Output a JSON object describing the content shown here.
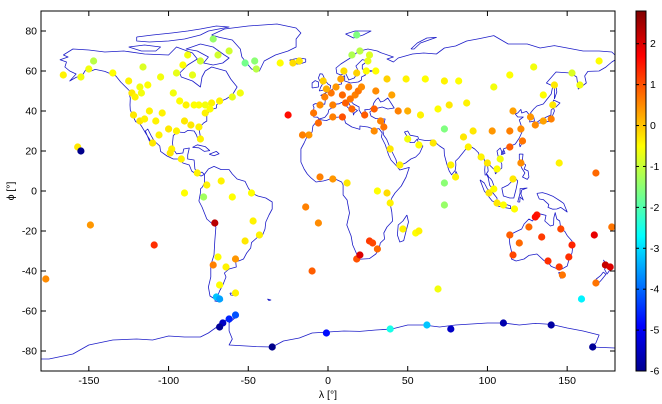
{
  "chart_data": {
    "type": "scatter",
    "xlabel": "λ [°]",
    "ylabel": "ϕ [°]",
    "xlim": [
      -180,
      180
    ],
    "ylim": [
      -90,
      90
    ],
    "xticks": [
      -150,
      -100,
      -50,
      0,
      50,
      100,
      150
    ],
    "yticks": [
      -80,
      -60,
      -40,
      -20,
      0,
      20,
      40,
      60,
      80
    ],
    "grid": false,
    "background": "world coastline map",
    "colorbar": {
      "position": "right",
      "range": [
        -6,
        2.8
      ],
      "ticks": [
        2,
        1,
        0,
        -1,
        -2,
        -3,
        -4,
        -5,
        -6
      ],
      "colormap": "jet"
    },
    "points": [
      {
        "lon": -177,
        "lat": -44,
        "v": 0.5
      },
      {
        "lon": -166,
        "lat": 58,
        "v": -0.4
      },
      {
        "lon": -155,
        "lat": 57,
        "v": -0.6
      },
      {
        "lon": -150,
        "lat": 61,
        "v": -0.6
      },
      {
        "lon": -147,
        "lat": 65,
        "v": -1.1
      },
      {
        "lon": -135,
        "lat": 59,
        "v": -0.5
      },
      {
        "lon": -125,
        "lat": 55,
        "v": -0.4
      },
      {
        "lon": -123,
        "lat": 49,
        "v": -0.3
      },
      {
        "lon": -121,
        "lat": 47,
        "v": -0.4
      },
      {
        "lon": -118,
        "lat": 52,
        "v": -0.6
      },
      {
        "lon": -117,
        "lat": 49,
        "v": -0.6
      },
      {
        "lon": -116,
        "lat": 62,
        "v": -0.8
      },
      {
        "lon": -113,
        "lat": 53,
        "v": -0.5
      },
      {
        "lon": -105,
        "lat": 57,
        "v": -0.6
      },
      {
        "lon": -95,
        "lat": 59,
        "v": -0.7
      },
      {
        "lon": -91,
        "lat": 63,
        "v": -0.5
      },
      {
        "lon": -88,
        "lat": 68,
        "v": -0.6
      },
      {
        "lon": -85,
        "lat": 58,
        "v": -0.7
      },
      {
        "lon": -80,
        "lat": 65,
        "v": -0.9
      },
      {
        "lon": -72,
        "lat": 76,
        "v": -1.4
      },
      {
        "lon": -69,
        "lat": 68,
        "v": -0.9
      },
      {
        "lon": -62,
        "lat": 70,
        "v": -0.9
      },
      {
        "lon": -52,
        "lat": 64,
        "v": -1.7
      },
      {
        "lon": -46,
        "lat": 65,
        "v": -1.5
      },
      {
        "lon": -45,
        "lat": 61,
        "v": -1.1
      },
      {
        "lon": -30,
        "lat": 64,
        "v": -0.5
      },
      {
        "lon": -22,
        "lat": 64,
        "v": -0.2
      },
      {
        "lon": -18,
        "lat": 65,
        "v": -0.3
      },
      {
        "lon": -55,
        "lat": 49,
        "v": -0.6
      },
      {
        "lon": -60,
        "lat": 47,
        "v": -0.7
      },
      {
        "lon": -68,
        "lat": 45,
        "v": -0.4
      },
      {
        "lon": -73,
        "lat": 44,
        "v": -0.4
      },
      {
        "lon": -77,
        "lat": 43,
        "v": -0.6
      },
      {
        "lon": -81,
        "lat": 43,
        "v": -0.5
      },
      {
        "lon": -84,
        "lat": 43,
        "v": -0.5
      },
      {
        "lon": -89,
        "lat": 43,
        "v": -0.4
      },
      {
        "lon": -93,
        "lat": 45,
        "v": -0.5
      },
      {
        "lon": -97,
        "lat": 49,
        "v": -0.6
      },
      {
        "lon": -104,
        "lat": 39,
        "v": -0.4
      },
      {
        "lon": -112,
        "lat": 40,
        "v": -0.4
      },
      {
        "lon": -118,
        "lat": 35,
        "v": -0.3
      },
      {
        "lon": -122,
        "lat": 38,
        "v": -0.3
      },
      {
        "lon": -115,
        "lat": 36,
        "v": -0.4
      },
      {
        "lon": -108,
        "lat": 35,
        "v": -0.4
      },
      {
        "lon": -100,
        "lat": 31,
        "v": -0.3
      },
      {
        "lon": -95,
        "lat": 30,
        "v": -0.4
      },
      {
        "lon": -90,
        "lat": 35,
        "v": -0.3
      },
      {
        "lon": -86,
        "lat": 33,
        "v": -0.3
      },
      {
        "lon": -81,
        "lat": 32,
        "v": -0.4
      },
      {
        "lon": -77,
        "lat": 39,
        "v": -0.4
      },
      {
        "lon": -74,
        "lat": 41,
        "v": -0.5
      },
      {
        "lon": -80,
        "lat": 26,
        "v": -0.4
      },
      {
        "lon": -98,
        "lat": 21,
        "v": -0.4
      },
      {
        "lon": -99,
        "lat": 19,
        "v": -0.3
      },
      {
        "lon": -106,
        "lat": 28,
        "v": -0.4
      },
      {
        "lon": -110,
        "lat": 24,
        "v": -0.3
      },
      {
        "lon": -92,
        "lat": 16,
        "v": -0.4
      },
      {
        "lon": -82,
        "lat": 9,
        "v": -0.4
      },
      {
        "lon": -76,
        "lat": 3,
        "v": -0.4
      },
      {
        "lon": -67,
        "lat": 5,
        "v": -0.4
      },
      {
        "lon": -60,
        "lat": -3,
        "v": -0.5
      },
      {
        "lon": -48,
        "lat": -1,
        "v": -0.5
      },
      {
        "lon": -47,
        "lat": -15,
        "v": -0.4
      },
      {
        "lon": -43,
        "lat": -22,
        "v": -0.4
      },
      {
        "lon": -52,
        "lat": -25,
        "v": -0.3
      },
      {
        "lon": -58,
        "lat": -34,
        "v": 0.4
      },
      {
        "lon": -69,
        "lat": -33,
        "v": -0.5
      },
      {
        "lon": -71,
        "lat": -16,
        "v": 2.3
      },
      {
        "lon": -78,
        "lat": -3,
        "v": -1.3
      },
      {
        "lon": -90,
        "lat": -1,
        "v": -0.5
      },
      {
        "lon": -109,
        "lat": -27,
        "v": 1.3
      },
      {
        "lon": -149,
        "lat": -17,
        "v": 0.4
      },
      {
        "lon": -157,
        "lat": 22,
        "v": -0.3
      },
      {
        "lon": -155,
        "lat": 20,
        "v": -5.9
      },
      {
        "lon": -64,
        "lat": -38,
        "v": -0.4
      },
      {
        "lon": -68,
        "lat": -47,
        "v": -0.5
      },
      {
        "lon": -70,
        "lat": -53,
        "v": -3.2
      },
      {
        "lon": -68,
        "lat": -54,
        "v": -3.5
      },
      {
        "lon": -58,
        "lat": -51,
        "v": -0.4
      },
      {
        "lon": -72,
        "lat": -37,
        "v": 0.6
      },
      {
        "lon": -12,
        "lat": 28,
        "v": 0.4
      },
      {
        "lon": -16,
        "lat": 28,
        "v": 0.6
      },
      {
        "lon": -25,
        "lat": 38,
        "v": 1.6
      },
      {
        "lon": -9,
        "lat": 39,
        "v": 0.7
      },
      {
        "lon": -5,
        "lat": 43,
        "v": 0.5
      },
      {
        "lon": -2,
        "lat": 47,
        "v": 0.6
      },
      {
        "lon": 2,
        "lat": 49,
        "v": 0.7
      },
      {
        "lon": 3,
        "lat": 43,
        "v": 0.6
      },
      {
        "lon": 5,
        "lat": 52,
        "v": 0.4
      },
      {
        "lon": 9,
        "lat": 48,
        "v": 0.8
      },
      {
        "lon": 11,
        "lat": 44,
        "v": 0.9
      },
      {
        "lon": 13,
        "lat": 52,
        "v": 0.6
      },
      {
        "lon": 15,
        "lat": 41,
        "v": 0.8
      },
      {
        "lon": 17,
        "lat": 48,
        "v": 0.6
      },
      {
        "lon": 19,
        "lat": 50,
        "v": 0.7
      },
      {
        "lon": 21,
        "lat": 52,
        "v": 0.5
      },
      {
        "lon": 23,
        "lat": 38,
        "v": 0.9
      },
      {
        "lon": 14,
        "lat": 46,
        "v": 0.7
      },
      {
        "lon": -3,
        "lat": 55,
        "v": -0.1
      },
      {
        "lon": -1,
        "lat": 51,
        "v": 0.2
      },
      {
        "lon": 8,
        "lat": 56,
        "v": 0.3
      },
      {
        "lon": 10,
        "lat": 60,
        "v": -0.2
      },
      {
        "lon": 18,
        "lat": 59,
        "v": -0.1
      },
      {
        "lon": 24,
        "lat": 60,
        "v": -0.5
      },
      {
        "lon": 15,
        "lat": 68,
        "v": -1.2
      },
      {
        "lon": 20,
        "lat": 70,
        "v": -1.1
      },
      {
        "lon": 26,
        "lat": 68,
        "v": -0.8
      },
      {
        "lon": 25,
        "lat": 65,
        "v": -0.7
      },
      {
        "lon": 18,
        "lat": 78,
        "v": -1.6
      },
      {
        "lon": 30,
        "lat": 60,
        "v": -0.5
      },
      {
        "lon": 37,
        "lat": 56,
        "v": -0.1
      },
      {
        "lon": 30,
        "lat": 50,
        "v": 0.5
      },
      {
        "lon": 40,
        "lat": 48,
        "v": 0.3
      },
      {
        "lon": 29,
        "lat": 41,
        "v": 0.9
      },
      {
        "lon": 33,
        "lat": 35,
        "v": 0.6
      },
      {
        "lon": 35,
        "lat": 32,
        "v": 0.7
      },
      {
        "lon": 44,
        "lat": 40,
        "v": 0.6
      },
      {
        "lon": 50,
        "lat": 40,
        "v": 0.2
      },
      {
        "lon": 9,
        "lat": 37,
        "v": 1.0
      },
      {
        "lon": 3,
        "lat": 37,
        "v": 0.6
      },
      {
        "lon": -6,
        "lat": 34,
        "v": 0.8
      },
      {
        "lon": 29,
        "lat": 30,
        "v": 0.5
      },
      {
        "lon": 39,
        "lat": 21,
        "v": -0.3
      },
      {
        "lon": 50,
        "lat": 26,
        "v": -0.6
      },
      {
        "lon": 57,
        "lat": 23,
        "v": -0.5
      },
      {
        "lon": 45,
        "lat": 13,
        "v": -0.4
      },
      {
        "lon": -5,
        "lat": 7,
        "v": 0.6
      },
      {
        "lon": 3,
        "lat": 6,
        "v": 0.4
      },
      {
        "lon": 12,
        "lat": 4,
        "v": -0.3
      },
      {
        "lon": 31,
        "lat": 0,
        "v": -0.5
      },
      {
        "lon": 37,
        "lat": -1,
        "v": -0.2
      },
      {
        "lon": 39,
        "lat": -6,
        "v": -0.4
      },
      {
        "lon": 26,
        "lat": -25,
        "v": 1.2
      },
      {
        "lon": 28,
        "lat": -26,
        "v": 1.1
      },
      {
        "lon": 18,
        "lat": -34,
        "v": 1.0
      },
      {
        "lon": 20,
        "lat": -32,
        "v": 2.0
      },
      {
        "lon": 31,
        "lat": -29,
        "v": 0.8
      },
      {
        "lon": 47,
        "lat": -19,
        "v": -0.4
      },
      {
        "lon": 55,
        "lat": -21,
        "v": -0.5
      },
      {
        "lon": 57,
        "lat": -20,
        "v": -0.4
      },
      {
        "lon": 73,
        "lat": -7,
        "v": -1.4
      },
      {
        "lon": 73,
        "lat": 4,
        "v": -1.5
      },
      {
        "lon": 77,
        "lat": 13,
        "v": -0.4
      },
      {
        "lon": 80,
        "lat": 7,
        "v": -0.4
      },
      {
        "lon": 69,
        "lat": -49,
        "v": -0.6
      },
      {
        "lon": 39,
        "lat": -69,
        "v": -2.5
      },
      {
        "lon": 62,
        "lat": -67,
        "v": -3.2
      },
      {
        "lon": 77,
        "lat": -69,
        "v": -5.4
      },
      {
        "lon": 110,
        "lat": -66,
        "v": -5.6
      },
      {
        "lon": 140,
        "lat": -67,
        "v": -5.7
      },
      {
        "lon": 166,
        "lat": -78,
        "v": -5.8
      },
      {
        "lon": -1,
        "lat": -71,
        "v": -4.8
      },
      {
        "lon": -35,
        "lat": -78,
        "v": -5.9
      },
      {
        "lon": -58,
        "lat": -62,
        "v": -4.2
      },
      {
        "lon": -62,
        "lat": -64,
        "v": -4.6
      },
      {
        "lon": -66,
        "lat": -66,
        "v": -5.4
      },
      {
        "lon": -68,
        "lat": -68,
        "v": -5.8
      },
      {
        "lon": 159,
        "lat": -54,
        "v": -2.8
      },
      {
        "lon": 147,
        "lat": -42,
        "v": 0.7
      },
      {
        "lon": 145,
        "lat": -38,
        "v": 1.2
      },
      {
        "lon": 151,
        "lat": -33,
        "v": 1.3
      },
      {
        "lon": 153,
        "lat": -27,
        "v": 1.4
      },
      {
        "lon": 146,
        "lat": -19,
        "v": 1.1
      },
      {
        "lon": 131,
        "lat": -12,
        "v": 1.5
      },
      {
        "lon": 134,
        "lat": -23,
        "v": 1.2
      },
      {
        "lon": 138,
        "lat": -35,
        "v": 1.3
      },
      {
        "lon": 116,
        "lat": -32,
        "v": 1.1
      },
      {
        "lon": 114,
        "lat": -22,
        "v": 0.9
      },
      {
        "lon": 126,
        "lat": -18,
        "v": 0.8
      },
      {
        "lon": 130,
        "lat": -13,
        "v": 1.6
      },
      {
        "lon": 120,
        "lat": -26,
        "v": 0.8
      },
      {
        "lon": 117,
        "lat": -9,
        "v": -0.5
      },
      {
        "lon": 106,
        "lat": -6,
        "v": -0.3
      },
      {
        "lon": 110,
        "lat": -7,
        "v": -0.5
      },
      {
        "lon": 101,
        "lat": -1,
        "v": -0.3
      },
      {
        "lon": 104,
        "lat": 1,
        "v": -0.5
      },
      {
        "lon": 116,
        "lat": 6,
        "v": -0.3
      },
      {
        "lon": 121,
        "lat": 14,
        "v": 0.5
      },
      {
        "lon": 122,
        "lat": 25,
        "v": 0.7
      },
      {
        "lon": 114,
        "lat": 22,
        "v": 0.9
      },
      {
        "lon": 100,
        "lat": 14,
        "v": -0.3
      },
      {
        "lon": 96,
        "lat": 17,
        "v": -0.4
      },
      {
        "lon": 106,
        "lat": 11,
        "v": -0.5
      },
      {
        "lon": 108,
        "lat": 16,
        "v": -0.6
      },
      {
        "lon": 127,
        "lat": 37,
        "v": 0.4
      },
      {
        "lon": 130,
        "lat": 33,
        "v": 0.5
      },
      {
        "lon": 135,
        "lat": 35,
        "v": 0.3
      },
      {
        "lon": 140,
        "lat": 36,
        "v": 0.6
      },
      {
        "lon": 141,
        "lat": 43,
        "v": -0.3
      },
      {
        "lon": 121,
        "lat": 31,
        "v": 0.5
      },
      {
        "lon": 116,
        "lat": 40,
        "v": 0.3
      },
      {
        "lon": 114,
        "lat": 30,
        "v": 0.6
      },
      {
        "lon": 103,
        "lat": 30,
        "v": 0.4
      },
      {
        "lon": 91,
        "lat": 30,
        "v": -0.3
      },
      {
        "lon": 87,
        "lat": 44,
        "v": -0.4
      },
      {
        "lon": 104,
        "lat": 52,
        "v": -0.6
      },
      {
        "lon": 114,
        "lat": 58,
        "v": -0.5
      },
      {
        "lon": 129,
        "lat": 62,
        "v": -0.6
      },
      {
        "lon": 135,
        "lat": 48,
        "v": -0.5
      },
      {
        "lon": 142,
        "lat": 53,
        "v": -0.3
      },
      {
        "lon": 158,
        "lat": 53,
        "v": -0.6
      },
      {
        "lon": 153,
        "lat": 59,
        "v": -0.8
      },
      {
        "lon": 170,
        "lat": 65,
        "v": -0.5
      },
      {
        "lon": 73,
        "lat": 55,
        "v": -0.4
      },
      {
        "lon": 82,
        "lat": 55,
        "v": -0.5
      },
      {
        "lon": 61,
        "lat": 56,
        "v": -0.5
      },
      {
        "lon": 49,
        "lat": 56,
        "v": -0.4
      },
      {
        "lon": 76,
        "lat": 43,
        "v": -0.3
      },
      {
        "lon": 69,
        "lat": 41,
        "v": -0.5
      },
      {
        "lon": 58,
        "lat": 38,
        "v": -0.4
      },
      {
        "lon": 66,
        "lat": 24,
        "v": -0.3
      },
      {
        "lon": 73,
        "lat": 31,
        "v": -1.6
      },
      {
        "lon": 85,
        "lat": 27,
        "v": -0.3
      },
      {
        "lon": 88,
        "lat": 22,
        "v": -0.4
      },
      {
        "lon": 168,
        "lat": -46,
        "v": 0.7
      },
      {
        "lon": 174,
        "lat": -37,
        "v": 2.2
      },
      {
        "lon": 177,
        "lat": -38,
        "v": 2.0
      },
      {
        "lon": 167,
        "lat": -22,
        "v": 1.9
      },
      {
        "lon": 178,
        "lat": -18,
        "v": 0.7
      },
      {
        "lon": 168,
        "lat": 9,
        "v": 0.8
      },
      {
        "lon": 145,
        "lat": 14,
        "v": -0.4
      },
      {
        "lon": -6,
        "lat": -16,
        "v": 0.5
      },
      {
        "lon": -14,
        "lat": -8,
        "v": 0.6
      },
      {
        "lon": -10,
        "lat": -40,
        "v": 0.9
      }
    ]
  }
}
